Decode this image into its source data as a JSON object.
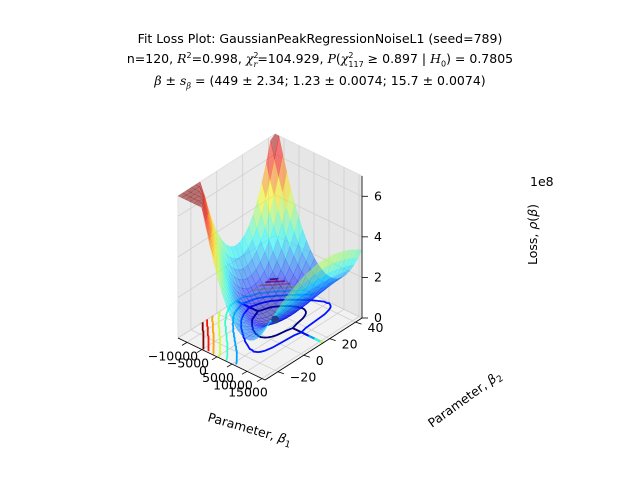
{
  "chart_data": {
    "type": "surface3d",
    "title": "Fit Loss Plot: GaussianPeakRegressionNoiseL1 (seed=789)",
    "subtitle_line2": "n=120, R²=0.998, χ²ᵣ=104.929, P(χ²₁₁₇ ≥ 0.897 | H₀) = 0.7805",
    "subtitle_line3": "β ± s_β = (449 ± 2.34; 1.23 ± 0.0074; 15.7 ± 0.0074)",
    "xlabel": "Parameter, β₁",
    "ylabel": "Parameter, β₂",
    "zlabel": "Loss, ρ(β)",
    "z_offset_label": "1e8",
    "xlim": [
      -13000,
      16000
    ],
    "ylim": [
      -30,
      45
    ],
    "zlim": [
      0,
      7
    ],
    "x_ticks": [
      -10000,
      -5000,
      0,
      5000,
      10000,
      15000
    ],
    "y_ticks": [
      -20,
      0,
      20,
      40
    ],
    "z_ticks": [
      0,
      2,
      4,
      6
    ],
    "z_units": "1e8",
    "colormap": "jet",
    "surface_alpha": 0.5,
    "grid": true,
    "minimum_point": {
      "x": 1,
      "y": 15,
      "z": 0
    }
  }
}
